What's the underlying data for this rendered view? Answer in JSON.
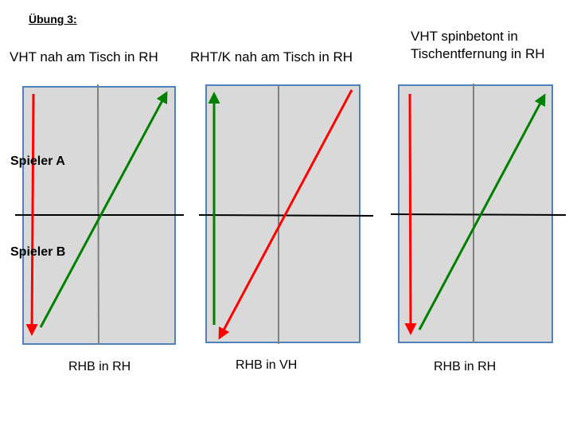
{
  "exercise": {
    "title": "Übung 3:"
  },
  "players": {
    "a": "Spieler A",
    "b": "Spieler B"
  },
  "colors": {
    "table": "#d9d9d9",
    "table_border": "#4f81bd",
    "center_line": "#808080",
    "net": "#000000",
    "red_arrow": "#ff0000",
    "green_arrow": "#008000"
  },
  "panels": [
    {
      "title": "VHT nah am Tisch in RH",
      "caption": "RHB in RH"
    },
    {
      "title": "RHT/K nah am Tisch in RH",
      "caption": "RHB in VH"
    },
    {
      "title": "VHT spinbetont in Tischentfernung in RH",
      "caption": "RHB in RH"
    }
  ]
}
